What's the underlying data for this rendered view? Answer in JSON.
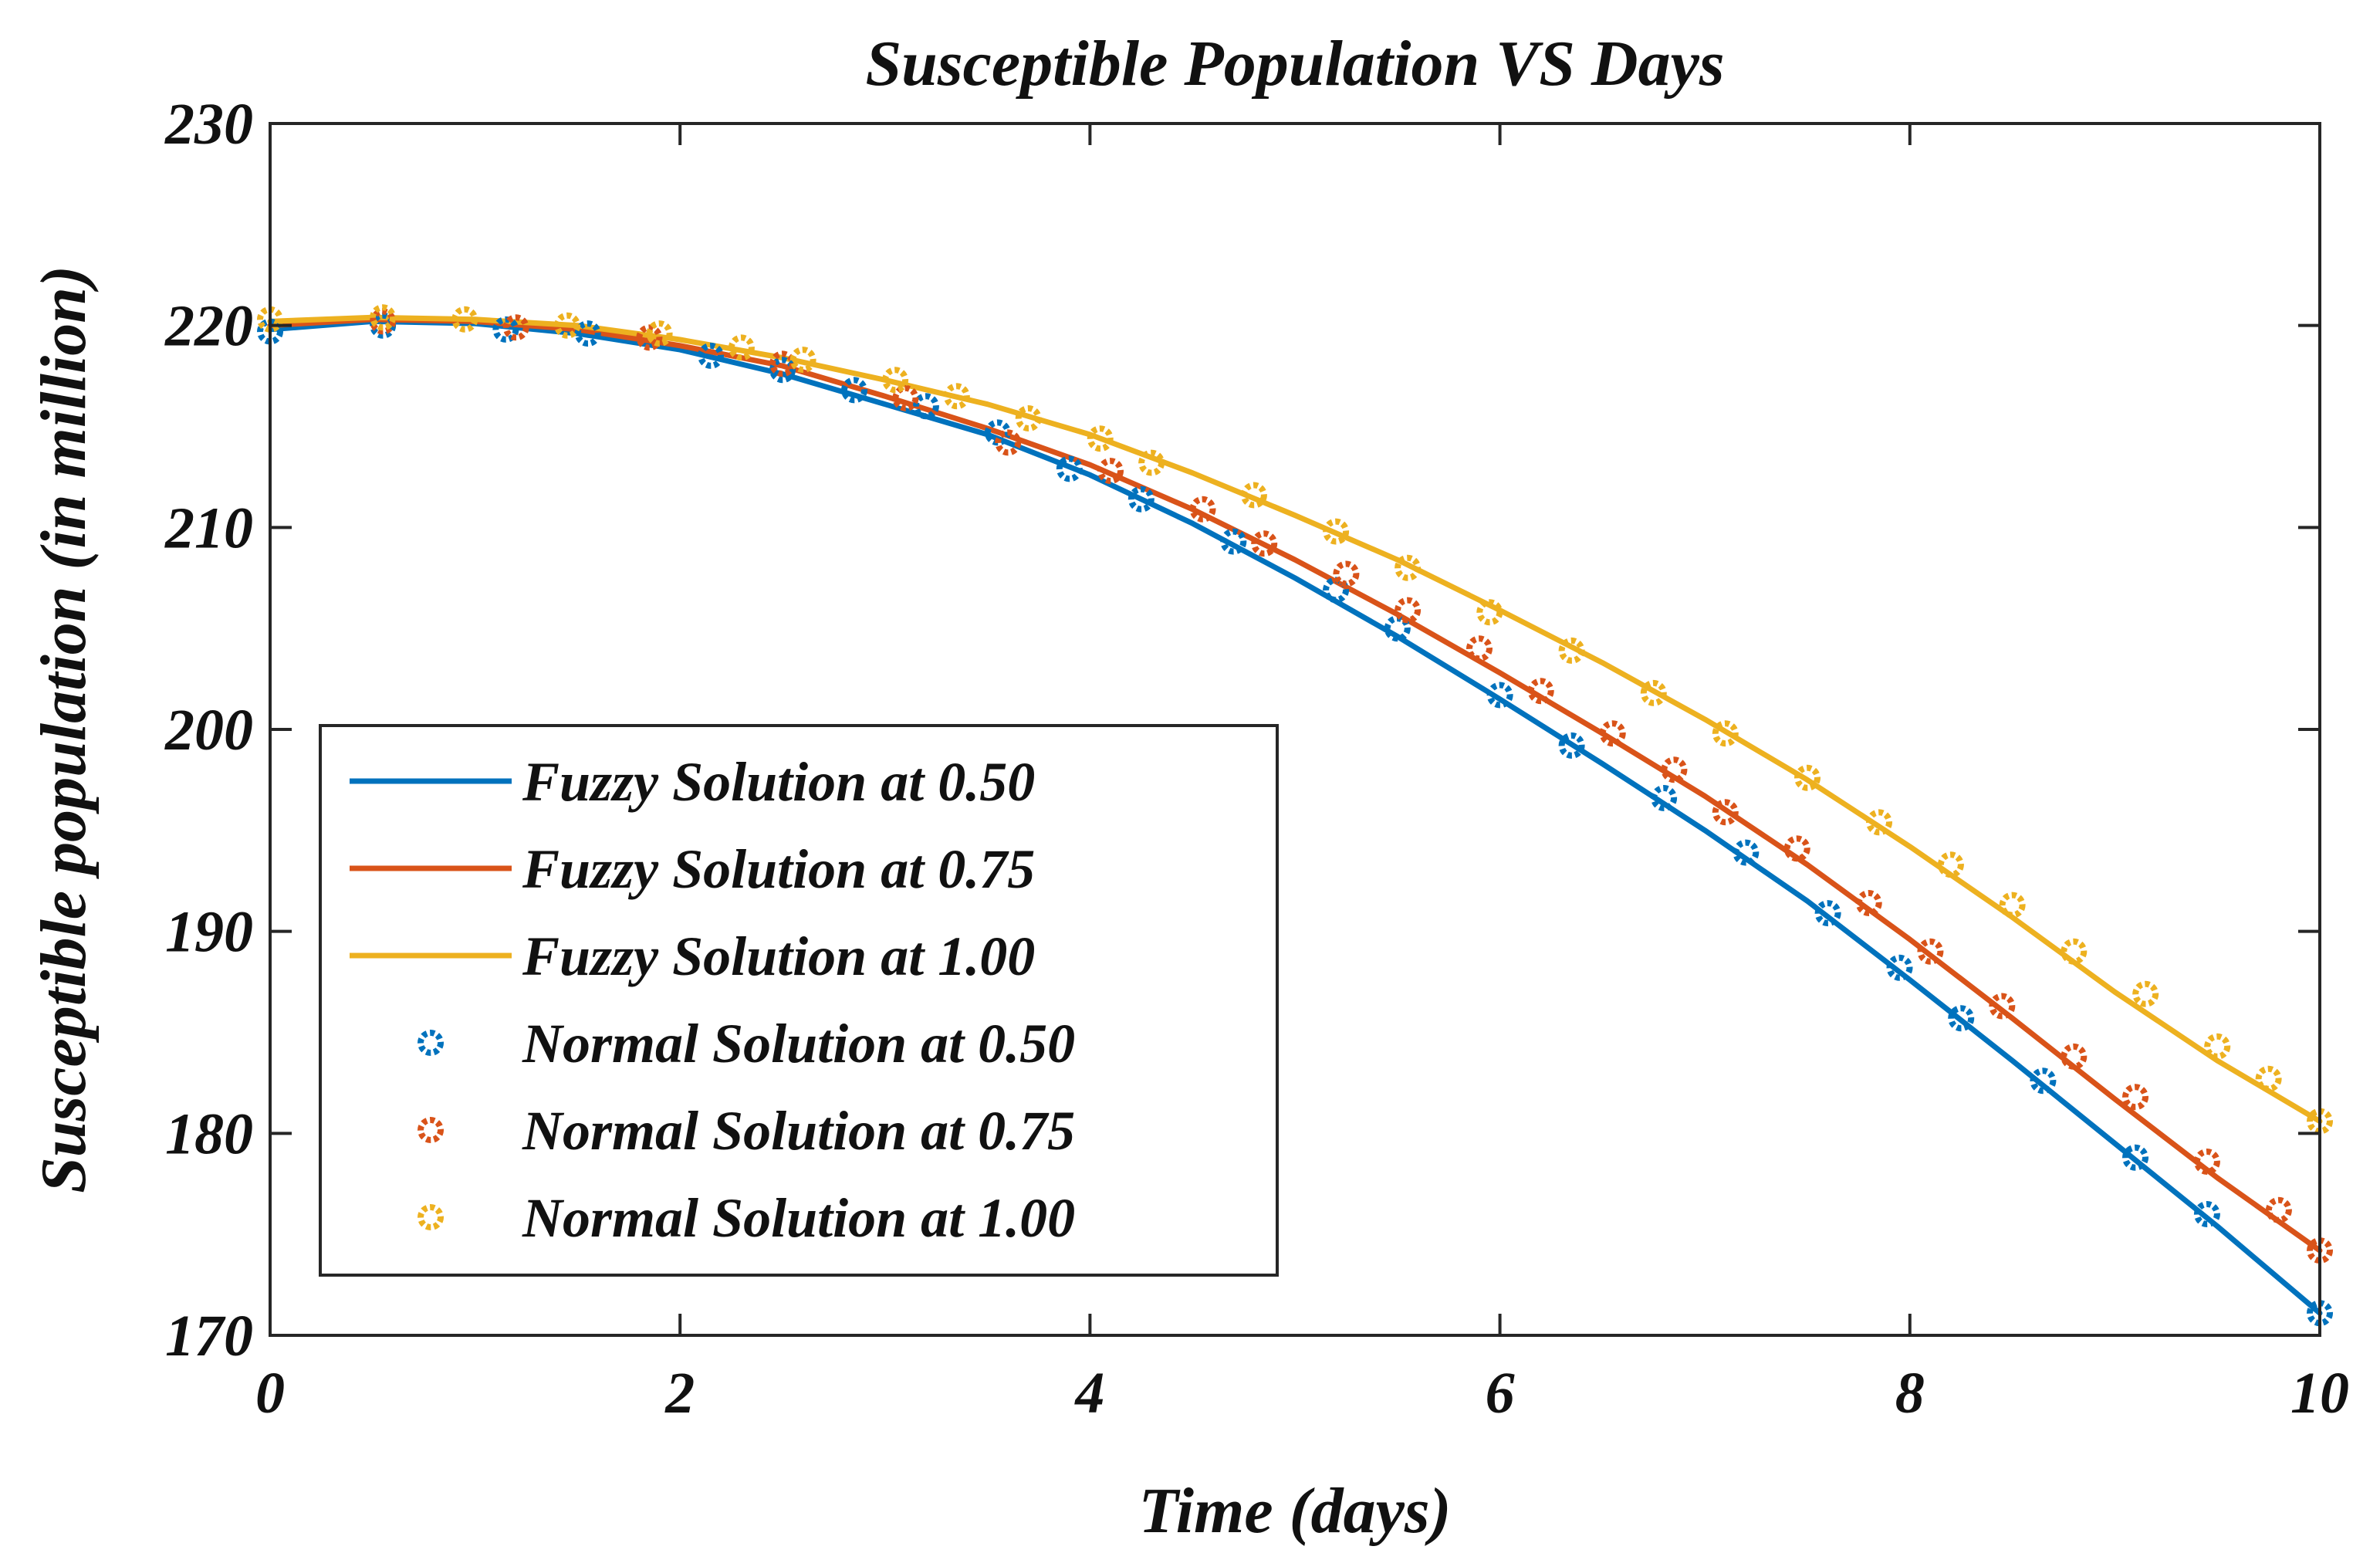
{
  "chart_data": {
    "type": "line",
    "title": "Susceptible Population VS Days",
    "xlabel": "Time (days)",
    "ylabel": "Susceptible population (in million)",
    "xlim": [
      0,
      10
    ],
    "ylim": [
      170,
      230
    ],
    "xticks": [
      "0",
      "2",
      "4",
      "6",
      "8",
      "10"
    ],
    "yticks": [
      "170",
      "180",
      "190",
      "200",
      "210",
      "220",
      "230"
    ],
    "grid": false,
    "legend_position": "lower-left",
    "series": [
      {
        "name": "Fuzzy Solution at 0.50",
        "kind": "line",
        "color": "#0072BD",
        "x": [
          0,
          0.5,
          1,
          1.5,
          2,
          2.5,
          3,
          3.5,
          4,
          4.5,
          5,
          5.5,
          6,
          6.5,
          7,
          7.5,
          8,
          8.5,
          9,
          9.5,
          10
        ],
        "y": [
          219.8,
          220.2,
          220.1,
          219.6,
          218.8,
          217.6,
          216.1,
          214.6,
          212.6,
          210.2,
          207.5,
          204.6,
          201.5,
          198.3,
          195.0,
          191.5,
          187.6,
          183.6,
          179.5,
          175.4,
          171.1
        ]
      },
      {
        "name": "Fuzzy Solution at 0.75",
        "kind": "line",
        "color": "#D95319",
        "x": [
          0,
          0.5,
          1,
          1.5,
          2,
          2.5,
          3,
          3.5,
          4,
          4.5,
          5,
          5.5,
          6,
          6.5,
          7,
          7.5,
          8,
          8.5,
          9,
          9.5,
          10
        ],
        "y": [
          220.0,
          220.3,
          220.2,
          219.8,
          219.0,
          218.0,
          216.5,
          214.9,
          213.1,
          210.9,
          208.4,
          205.7,
          202.8,
          199.8,
          196.7,
          193.3,
          189.6,
          185.7,
          181.7,
          177.8,
          174.2
        ]
      },
      {
        "name": "Fuzzy Solution at 1.00",
        "kind": "line",
        "color": "#EDB120",
        "x": [
          0,
          0.5,
          1,
          1.5,
          2,
          2.5,
          3,
          3.5,
          4,
          4.5,
          5,
          5.5,
          6,
          6.5,
          7,
          7.5,
          8,
          8.5,
          9,
          9.5,
          10
        ],
        "y": [
          220.2,
          220.4,
          220.3,
          220.0,
          219.3,
          218.4,
          217.3,
          216.1,
          214.6,
          212.7,
          210.6,
          208.4,
          205.9,
          203.3,
          200.5,
          197.5,
          194.2,
          190.7,
          187.0,
          183.6,
          180.6
        ]
      },
      {
        "name": "Normal Solution at 0.50",
        "kind": "marker",
        "color": "#0072BD",
        "x": [
          0,
          0.55,
          1.15,
          1.55,
          2.15,
          2.5,
          2.85,
          3.2,
          3.55,
          3.9,
          4.25,
          4.7,
          5.2,
          5.5,
          6.0,
          6.35,
          6.8,
          7.2,
          7.6,
          7.95,
          8.25,
          8.65,
          9.1,
          9.45,
          10.0
        ],
        "y": [
          219.7,
          220.0,
          219.8,
          219.6,
          218.5,
          217.8,
          216.8,
          216.0,
          214.7,
          212.9,
          211.4,
          209.3,
          206.9,
          205.0,
          201.7,
          199.2,
          196.6,
          193.9,
          190.9,
          188.2,
          185.7,
          182.6,
          178.8,
          176.0,
          171.1
        ]
      },
      {
        "name": "Normal Solution at 0.75",
        "kind": "marker",
        "color": "#D95319",
        "x": [
          0.55,
          1.2,
          1.85,
          2.5,
          3.1,
          3.6,
          4.1,
          4.55,
          4.85,
          5.25,
          5.55,
          5.9,
          6.2,
          6.55,
          6.85,
          7.1,
          7.45,
          7.8,
          8.1,
          8.45,
          8.8,
          9.1,
          9.45,
          9.8,
          10.0
        ],
        "y": [
          220.2,
          219.9,
          219.4,
          218.1,
          216.4,
          214.2,
          212.8,
          210.9,
          209.2,
          207.7,
          205.9,
          204.0,
          201.9,
          199.8,
          198.0,
          195.9,
          194.1,
          191.4,
          189.0,
          186.3,
          183.8,
          181.8,
          178.6,
          176.2,
          174.2
        ]
      },
      {
        "name": "Normal Solution at 1.00",
        "kind": "marker",
        "color": "#EDB120",
        "x": [
          0,
          0.55,
          0.95,
          1.45,
          1.9,
          2.3,
          2.6,
          3.05,
          3.35,
          3.7,
          4.05,
          4.3,
          4.8,
          5.2,
          5.55,
          5.95,
          6.35,
          6.75,
          7.1,
          7.5,
          7.85,
          8.2,
          8.5,
          8.8,
          9.15,
          9.5,
          9.75,
          10.0
        ],
        "y": [
          220.3,
          220.4,
          220.3,
          220.0,
          219.6,
          218.9,
          218.3,
          217.3,
          216.5,
          215.4,
          214.4,
          213.2,
          211.6,
          209.8,
          208.0,
          205.8,
          203.9,
          201.8,
          199.8,
          197.6,
          195.4,
          193.3,
          191.3,
          189.0,
          186.9,
          184.3,
          182.7,
          180.6
        ]
      }
    ]
  }
}
